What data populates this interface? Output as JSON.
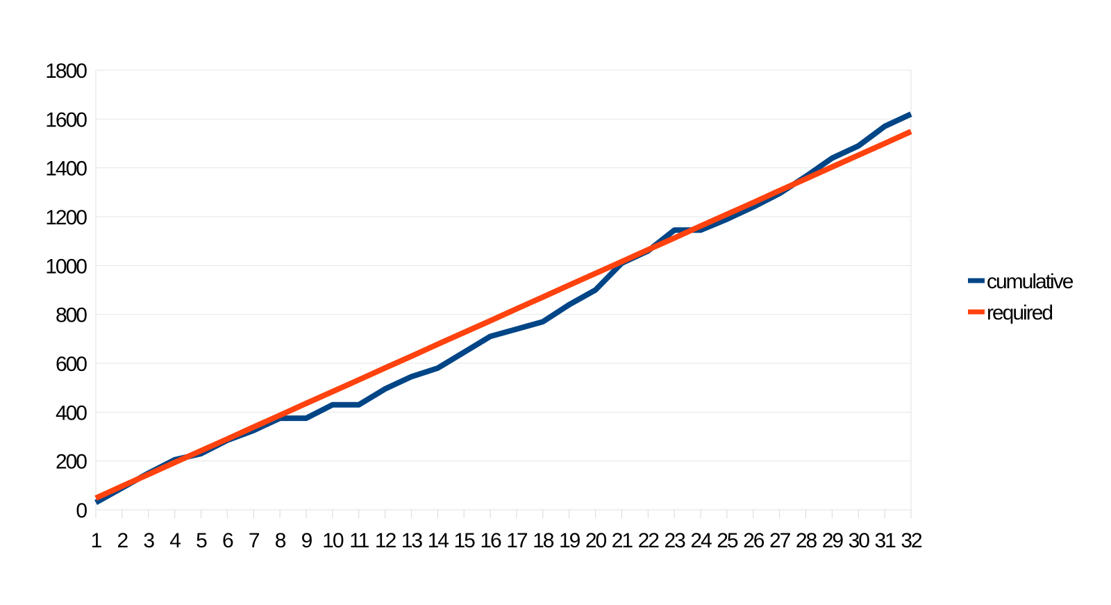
{
  "chart_data": {
    "type": "line",
    "title": "",
    "xlabel": "",
    "ylabel": "",
    "x": [
      1,
      2,
      3,
      4,
      5,
      6,
      7,
      8,
      9,
      10,
      11,
      12,
      13,
      14,
      15,
      16,
      17,
      18,
      19,
      20,
      21,
      22,
      23,
      24,
      25,
      26,
      27,
      28,
      29,
      30,
      31,
      32
    ],
    "x_tick_labels": [
      "1",
      "2",
      "3",
      "4",
      "5",
      "6",
      "7",
      "8",
      "9",
      "10",
      "11",
      "12",
      "13",
      "14",
      "15",
      "16",
      "17",
      "18",
      "19",
      "20",
      "21",
      "22",
      "23",
      "24",
      "25",
      "26",
      "27",
      "28",
      "29",
      "30",
      "31",
      "32"
    ],
    "y_tick_labels": [
      "0",
      "200",
      "400",
      "600",
      "800",
      "1000",
      "1200",
      "1400",
      "1600",
      "1800"
    ],
    "ylim": [
      0,
      1800
    ],
    "grid": true,
    "legend_position": "right",
    "series": [
      {
        "name": "cumulative",
        "color": "#004586",
        "values": [
          30,
          90,
          150,
          205,
          230,
          285,
          325,
          375,
          375,
          430,
          430,
          495,
          545,
          580,
          645,
          710,
          740,
          770,
          840,
          900,
          1010,
          1060,
          1145,
          1145,
          1190,
          1240,
          1295,
          1365,
          1440,
          1490,
          1570,
          1620
        ]
      },
      {
        "name": "required",
        "color": "#ff420e",
        "values": [
          48,
          97,
          145,
          194,
          242,
          290,
          339,
          387,
          436,
          484,
          532,
          581,
          629,
          678,
          726,
          774,
          823,
          871,
          920,
          968,
          1016,
          1065,
          1113,
          1162,
          1210,
          1258,
          1307,
          1355,
          1404,
          1452,
          1500,
          1549
        ]
      }
    ]
  }
}
